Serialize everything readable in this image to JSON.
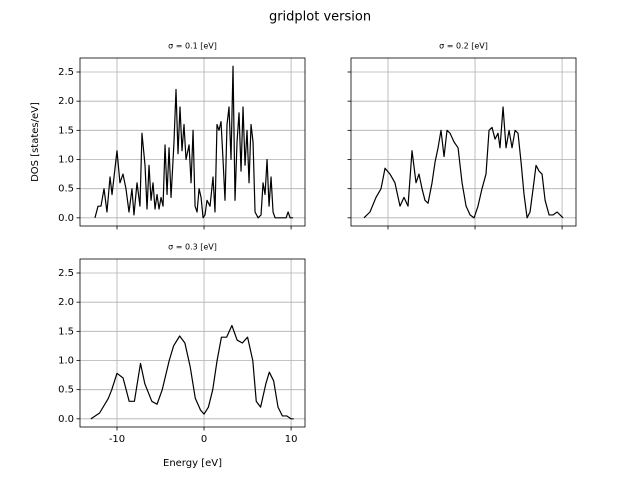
{
  "title": "gridplot version",
  "chart_data": [
    {
      "type": "line",
      "title": "σ = 0.1 [eV]",
      "ylabel": "DOS [states/eV]",
      "grid": true,
      "xlim": [
        -14.25,
        11.6
      ],
      "xticks": [
        -10,
        0,
        10
      ],
      "ylim": [
        -0.14,
        2.74
      ],
      "yticks": [
        {
          "value": 0,
          "label": "0.0"
        },
        0.5,
        {
          "value": 1,
          "label": "1.0"
        },
        1.5,
        {
          "value": 2,
          "label": "2.0"
        },
        2.5
      ],
      "x": [
        -12.53,
        -12.18,
        -11.84,
        -11.49,
        -11.15,
        -10.8,
        -10.57,
        -10.0,
        -9.66,
        -9.31,
        -8.97,
        -8.62,
        -8.28,
        -8.05,
        -7.7,
        -7.36,
        -7.13,
        -6.78,
        -6.55,
        -6.32,
        -6.09,
        -5.86,
        -5.63,
        -5.4,
        -5.17,
        -4.94,
        -4.71,
        -4.48,
        -4.25,
        -4.02,
        -3.79,
        -3.45,
        -3.22,
        -2.99,
        -2.76,
        -2.53,
        -2.3,
        -2.07,
        -1.72,
        -1.49,
        -1.26,
        -1.03,
        -0.8,
        -0.57,
        -0.34,
        -0.11,
        0.11,
        0.34,
        0.69,
        1.03,
        1.26,
        1.49,
        1.72,
        1.95,
        2.18,
        2.41,
        2.64,
        2.87,
        3.1,
        3.33,
        3.56,
        3.79,
        4.02,
        4.25,
        4.48,
        4.71,
        4.94,
        5.17,
        5.4,
        5.63,
        5.86,
        6.21,
        6.55,
        6.78,
        7.01,
        7.24,
        7.47,
        7.7,
        7.93,
        8.16,
        9.43,
        9.66,
        9.89,
        10.23
      ],
      "series": [
        {
          "color": "#000000",
          "values": [
            0,
            0.2,
            0.2,
            0.5,
            0.1,
            0.7,
            0.4,
            1.15,
            0.6,
            0.75,
            0.5,
            0.1,
            0.5,
            0.05,
            0.6,
            0.2,
            1.45,
            0.9,
            0.15,
            0.9,
            0.3,
            0.6,
            0.15,
            0.4,
            0.15,
            0.35,
            0.2,
            1.25,
            0.4,
            1.2,
            0.35,
            1.3,
            2.2,
            1.1,
            1.9,
            1.15,
            1.6,
            1.0,
            1.25,
            0.6,
            1.5,
            0.2,
            0.1,
            0.5,
            0.35,
            0.0,
            0.05,
            0.3,
            0.2,
            0.7,
            0.1,
            1.6,
            1.5,
            1.65,
            1.0,
            0.3,
            1.6,
            1.9,
            1.0,
            2.6,
            0.3,
            1.3,
            1.8,
            0.8,
            1.9,
            0.9,
            1.5,
            0.6,
            1.6,
            1.3,
            0.1,
            0.0,
            0.05,
            0.6,
            0.4,
            1.0,
            0.2,
            0.7,
            0.1,
            0.0,
            0.0,
            0.1,
            0.0,
            0.0
          ]
        }
      ]
    },
    {
      "type": "line",
      "title": "σ = 0.2 [eV]",
      "grid": true,
      "xlim": [
        -14.25,
        11.6
      ],
      "xticks": [
        -10,
        0,
        10
      ],
      "ylim": [
        -0.14,
        2.74
      ],
      "yticks": [
        {
          "value": 0,
          "label": "0.0"
        },
        0.5,
        {
          "value": 1,
          "label": "1.0"
        },
        1.5,
        {
          "value": 2,
          "label": "2.0"
        },
        2.5
      ],
      "x": [
        -12.76,
        -12.07,
        -11.38,
        -10.8,
        -10.34,
        -9.77,
        -9.2,
        -8.62,
        -8.16,
        -7.7,
        -7.24,
        -6.78,
        -6.44,
        -6.09,
        -5.75,
        -5.4,
        -4.94,
        -4.6,
        -4.25,
        -3.91,
        -3.56,
        -3.22,
        -2.87,
        -2.41,
        -1.95,
        -1.49,
        -1.03,
        -0.57,
        -0.11,
        0.34,
        0.8,
        1.26,
        1.61,
        1.95,
        2.3,
        2.64,
        2.87,
        3.22,
        3.56,
        3.91,
        4.25,
        4.6,
        4.94,
        5.29,
        5.63,
        5.98,
        6.32,
        6.67,
        7.01,
        7.36,
        7.7,
        8.05,
        8.51,
        8.97,
        9.43,
        9.77,
        10.11
      ],
      "series": [
        {
          "color": "#000000",
          "values": [
            0,
            0.1,
            0.35,
            0.5,
            0.85,
            0.75,
            0.6,
            0.2,
            0.35,
            0.2,
            1.15,
            0.6,
            0.75,
            0.5,
            0.3,
            0.25,
            0.6,
            0.95,
            1.2,
            1.5,
            1.05,
            1.5,
            1.45,
            1.3,
            1.2,
            0.6,
            0.2,
            0.05,
            0.0,
            0.2,
            0.5,
            0.75,
            1.5,
            1.55,
            1.35,
            1.45,
            1.2,
            1.9,
            1.2,
            1.5,
            1.2,
            1.5,
            1.45,
            0.95,
            0.4,
            0.0,
            0.1,
            0.5,
            0.9,
            0.8,
            0.75,
            0.3,
            0.05,
            0.05,
            0.1,
            0.05,
            0.0
          ]
        }
      ]
    },
    {
      "type": "line",
      "title": "σ = 0.3 [eV]",
      "xlabel": "Energy [eV]",
      "grid": true,
      "xlim": [
        -14.25,
        11.6
      ],
      "xticks": [
        -10,
        0,
        10
      ],
      "ylim": [
        -0.14,
        2.74
      ],
      "yticks": [
        {
          "value": 0,
          "label": "0.0"
        },
        0.5,
        {
          "value": 1,
          "label": "1.0"
        },
        1.5,
        {
          "value": 2,
          "label": "2.0"
        },
        2.5
      ],
      "x": [
        -13,
        -12,
        -11,
        -10.6,
        -10,
        -9.3,
        -8.6,
        -8,
        -7.3,
        -6.8,
        -6,
        -5.4,
        -4.8,
        -4,
        -3.5,
        -2.8,
        -2.2,
        -1.6,
        -1,
        -0.4,
        0,
        0.5,
        1,
        1.5,
        2,
        2.6,
        3.2,
        3.8,
        4.4,
        5,
        5.6,
        6,
        6.5,
        7.1,
        7.5,
        8,
        8.5,
        9,
        9.5,
        10,
        10.3
      ],
      "series": [
        {
          "color": "#000000",
          "values": [
            0,
            0.1,
            0.35,
            0.5,
            0.78,
            0.7,
            0.3,
            0.3,
            0.95,
            0.6,
            0.3,
            0.25,
            0.5,
            1.0,
            1.25,
            1.42,
            1.3,
            0.9,
            0.35,
            0.15,
            0.08,
            0.2,
            0.5,
            1.0,
            1.4,
            1.4,
            1.6,
            1.35,
            1.3,
            1.4,
            1.0,
            0.3,
            0.2,
            0.6,
            0.8,
            0.65,
            0.2,
            0.05,
            0.05,
            0.0,
            0.0
          ]
        }
      ]
    }
  ]
}
